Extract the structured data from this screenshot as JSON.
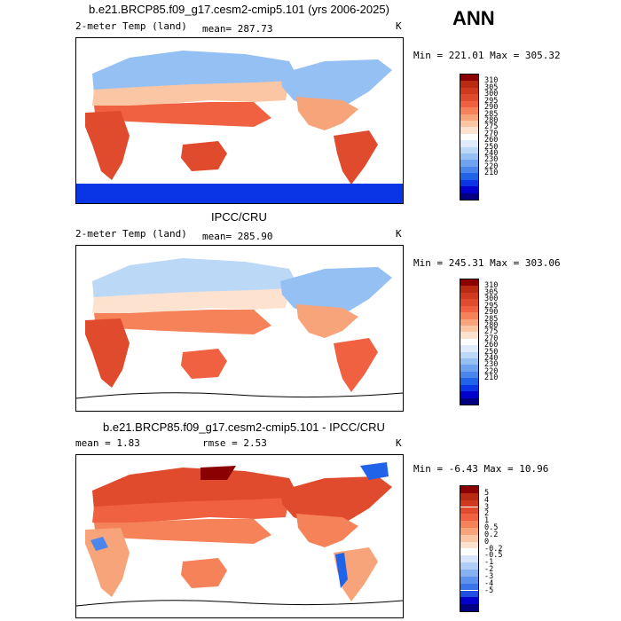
{
  "season": "ANN",
  "units": "K",
  "colors": {
    "levels_abs": [
      "#000080",
      "#0000cd",
      "#0a35e6",
      "#2163e8",
      "#4a86eb",
      "#6ea3ef",
      "#94c0f3",
      "#bcd8f7",
      "#dfeafc",
      "#ffffff",
      "#fde3cf",
      "#fbc6a3",
      "#f8a47a",
      "#f58258",
      "#ef6140",
      "#e04a2d",
      "#cf3a1f",
      "#b82a12",
      "#8b0000"
    ],
    "levels_diff": [
      "#000080",
      "#0000cd",
      "#1f4fe0",
      "#3a74e8",
      "#5e92ed",
      "#86b0f2",
      "#b0cdf6",
      "#d6e5fb",
      "#ffffff",
      "#fde3cf",
      "#fbc6a3",
      "#f8a47a",
      "#f58258",
      "#ef6140",
      "#e04a2d",
      "#cf3a1f",
      "#b82a12",
      "#8b0000"
    ]
  },
  "panels": [
    {
      "title": "b.e21.BRCP85.f09_g17.cesm2-cmip5.101 (yrs 2006-2025)",
      "variable": "2-meter Temp (land)",
      "stat1": "mean= 287.73",
      "stat2": "",
      "minmax": "Min = 221.01 Max = 305.32"
    },
    {
      "title": "IPCC/CRU",
      "variable": "2-meter Temp (land)",
      "stat1": "mean= 285.90",
      "stat2": "",
      "minmax": "Min = 245.31 Max = 303.06"
    },
    {
      "title": "b.e21.BRCP85.f09_g17.cesm2-cmip5.101 - IPCC/CRU",
      "variable": "",
      "stat1": "mean =    1.83",
      "stat2": "rmse =    2.53",
      "minmax": "Min =  -6.43 Max =  10.96"
    }
  ],
  "chart_data": [
    {
      "type": "heatmap",
      "title": "b.e21.BRCP85.f09_g17.cesm2-cmip5.101 (yrs 2006-2025)",
      "variable": "2-meter Temp (land)",
      "units": "K",
      "mean": 287.73,
      "min": 221.01,
      "max": 305.32,
      "colorbar_levels": [
        "310",
        "305",
        "300",
        "295",
        "290",
        "285",
        "280",
        "275",
        "270",
        "260",
        "250",
        "240",
        "230",
        "220",
        "210"
      ]
    },
    {
      "type": "heatmap",
      "title": "IPCC/CRU",
      "variable": "2-meter Temp (land)",
      "units": "K",
      "mean": 285.9,
      "min": 245.31,
      "max": 303.06,
      "colorbar_levels": [
        "310",
        "305",
        "300",
        "295",
        "290",
        "285",
        "280",
        "275",
        "270",
        "260",
        "250",
        "240",
        "230",
        "220",
        "210"
      ]
    },
    {
      "type": "heatmap",
      "title": "b.e21.BRCP85.f09_g17.cesm2-cmip5.101 - IPCC/CRU",
      "units": "K",
      "mean": 1.83,
      "rmse": 2.53,
      "min": -6.43,
      "max": 10.96,
      "colorbar_levels": [
        "5",
        "4",
        "3",
        "2",
        "1",
        "0.5",
        "0.2",
        "0",
        "-0.2",
        "-0.5",
        "-1",
        "-2",
        "-3",
        "-4",
        "-5"
      ]
    }
  ]
}
